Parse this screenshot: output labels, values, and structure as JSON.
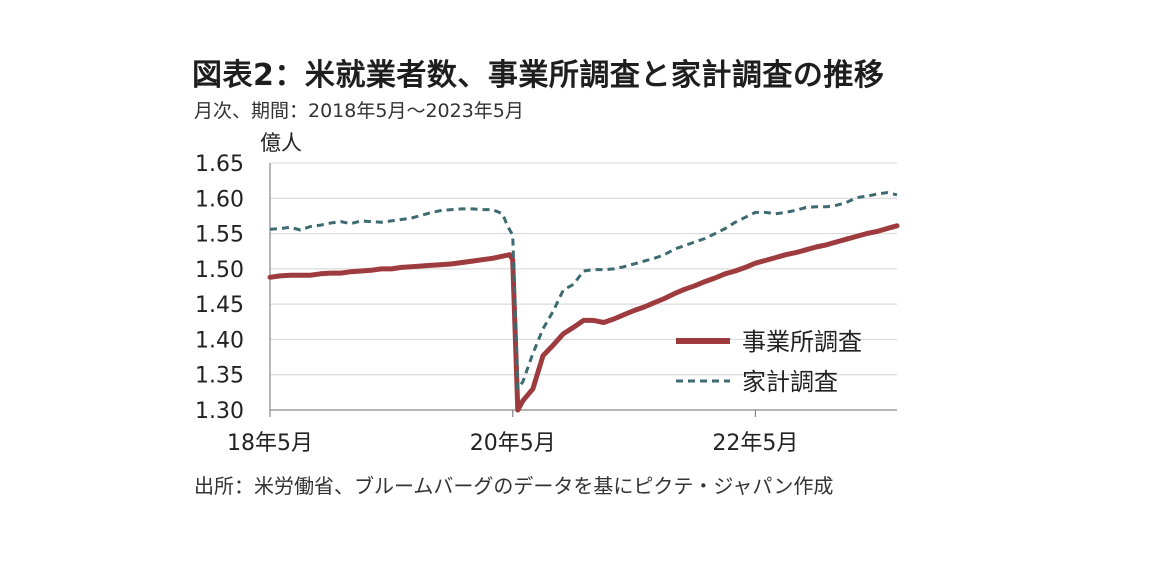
{
  "title": "図表2：米就業者数、事業所調査と家計調査の推移",
  "subtitle": "月次、期間：2018年5月～2023年5月",
  "source": "出所：米労働省、ブルームバーグのデータを基にピクテ・ジャパン作成",
  "chart_data": {
    "type": "line",
    "ylabel": "億人",
    "ylim": [
      1.3,
      1.65
    ],
    "yticks": [
      "1.65",
      "1.60",
      "1.55",
      "1.50",
      "1.45",
      "1.40",
      "1.35",
      "1.30"
    ],
    "xlim": [
      0,
      62
    ],
    "xticks": [
      {
        "x": 0,
        "label": "18年5月"
      },
      {
        "x": 24,
        "label": "20年5月"
      },
      {
        "x": 48,
        "label": "22年5月"
      }
    ],
    "grid": true,
    "legend_position": "lower-right",
    "series": [
      {
        "name": "事業所調査",
        "color": "#9e3b3f",
        "style": "solid",
        "points": [
          [
            0,
            1.488
          ],
          [
            1,
            1.49
          ],
          [
            2,
            1.491
          ],
          [
            3,
            1.491
          ],
          [
            4,
            1.491
          ],
          [
            5,
            1.493
          ],
          [
            6,
            1.494
          ],
          [
            7,
            1.494
          ],
          [
            8,
            1.496
          ],
          [
            9,
            1.497
          ],
          [
            10,
            1.498
          ],
          [
            11,
            1.5
          ],
          [
            12,
            1.5
          ],
          [
            13,
            1.502
          ],
          [
            14,
            1.503
          ],
          [
            15,
            1.504
          ],
          [
            16,
            1.505
          ],
          [
            17,
            1.506
          ],
          [
            18,
            1.507
          ],
          [
            19,
            1.509
          ],
          [
            20,
            1.511
          ],
          [
            21,
            1.513
          ],
          [
            22,
            1.515
          ],
          [
            23,
            1.518
          ],
          [
            23.7,
            1.52
          ],
          [
            24,
            1.513
          ],
          [
            24.5,
            1.3
          ],
          [
            25,
            1.313
          ],
          [
            26,
            1.33
          ],
          [
            27,
            1.377
          ],
          [
            28,
            1.392
          ],
          [
            29,
            1.408
          ],
          [
            30,
            1.417
          ],
          [
            31,
            1.427
          ],
          [
            32,
            1.427
          ],
          [
            33,
            1.424
          ],
          [
            34,
            1.429
          ],
          [
            35,
            1.435
          ],
          [
            36,
            1.441
          ],
          [
            37,
            1.446
          ],
          [
            38,
            1.452
          ],
          [
            39,
            1.458
          ],
          [
            40,
            1.465
          ],
          [
            41,
            1.471
          ],
          [
            42,
            1.476
          ],
          [
            43,
            1.482
          ],
          [
            44,
            1.487
          ],
          [
            45,
            1.493
          ],
          [
            46,
            1.497
          ],
          [
            47,
            1.502
          ],
          [
            48,
            1.508
          ],
          [
            49,
            1.512
          ],
          [
            50,
            1.516
          ],
          [
            51,
            1.52
          ],
          [
            52,
            1.523
          ],
          [
            53,
            1.527
          ],
          [
            54,
            1.531
          ],
          [
            55,
            1.534
          ],
          [
            56,
            1.538
          ],
          [
            57,
            1.542
          ],
          [
            58,
            1.546
          ],
          [
            59,
            1.55
          ],
          [
            60,
            1.553
          ],
          [
            61,
            1.557
          ],
          [
            62,
            1.561
          ]
        ]
      },
      {
        "name": "家計調査",
        "color": "#3d6b70",
        "style": "dashed",
        "points": [
          [
            0,
            1.556
          ],
          [
            1,
            1.557
          ],
          [
            2,
            1.559
          ],
          [
            3,
            1.555
          ],
          [
            4,
            1.56
          ],
          [
            5,
            1.562
          ],
          [
            6,
            1.565
          ],
          [
            7,
            1.567
          ],
          [
            8,
            1.564
          ],
          [
            9,
            1.568
          ],
          [
            10,
            1.567
          ],
          [
            11,
            1.566
          ],
          [
            12,
            1.568
          ],
          [
            13,
            1.57
          ],
          [
            14,
            1.572
          ],
          [
            15,
            1.576
          ],
          [
            16,
            1.58
          ],
          [
            17,
            1.583
          ],
          [
            18,
            1.584
          ],
          [
            19,
            1.585
          ],
          [
            20,
            1.585
          ],
          [
            21,
            1.584
          ],
          [
            22,
            1.584
          ],
          [
            23,
            1.578
          ],
          [
            23.5,
            1.56
          ],
          [
            24,
            1.548
          ],
          [
            24.5,
            1.33
          ],
          [
            25,
            1.34
          ],
          [
            26,
            1.38
          ],
          [
            27,
            1.415
          ],
          [
            28,
            1.44
          ],
          [
            29,
            1.47
          ],
          [
            30,
            1.478
          ],
          [
            31,
            1.497
          ],
          [
            32,
            1.499
          ],
          [
            33,
            1.499
          ],
          [
            34,
            1.5
          ],
          [
            35,
            1.503
          ],
          [
            36,
            1.507
          ],
          [
            37,
            1.511
          ],
          [
            38,
            1.515
          ],
          [
            39,
            1.52
          ],
          [
            40,
            1.528
          ],
          [
            41,
            1.533
          ],
          [
            42,
            1.538
          ],
          [
            43,
            1.543
          ],
          [
            44,
            1.55
          ],
          [
            45,
            1.557
          ],
          [
            46,
            1.566
          ],
          [
            47,
            1.573
          ],
          [
            48,
            1.58
          ],
          [
            49,
            1.58
          ],
          [
            50,
            1.578
          ],
          [
            51,
            1.58
          ],
          [
            52,
            1.583
          ],
          [
            53,
            1.587
          ],
          [
            54,
            1.588
          ],
          [
            55,
            1.588
          ],
          [
            56,
            1.59
          ],
          [
            57,
            1.594
          ],
          [
            58,
            1.601
          ],
          [
            59,
            1.603
          ],
          [
            60,
            1.606
          ],
          [
            61,
            1.608
          ],
          [
            62,
            1.605
          ]
        ]
      }
    ]
  }
}
